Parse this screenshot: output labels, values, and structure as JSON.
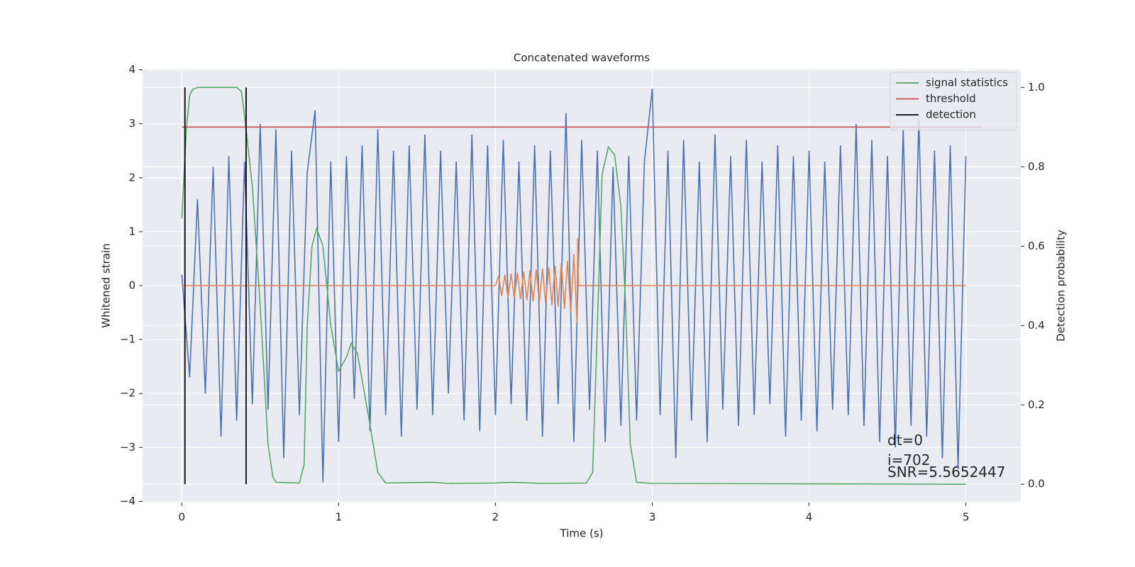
{
  "chart_data": {
    "type": "line",
    "title": "Concatenated waveforms",
    "xlabel": "Time (s)",
    "ylabel": "Whitened strain",
    "y2label": "Detection probability",
    "xlim": [
      -0.25,
      5.35
    ],
    "ylim": [
      -4.02,
      4.02
    ],
    "y2lim": [
      -0.046,
      1.047
    ],
    "xticks": [
      0,
      1,
      2,
      3,
      4,
      5
    ],
    "yticks": [
      {
        "value": -4,
        "label": "−4"
      },
      {
        "value": -3,
        "label": "−3"
      },
      {
        "value": -2,
        "label": "−2"
      },
      {
        "value": -1,
        "label": "−1"
      },
      0,
      1,
      2,
      3,
      4
    ],
    "y2ticks": [
      {
        "value": 0,
        "label": "0.0"
      },
      {
        "value": 0.2,
        "label": "0.2"
      },
      {
        "value": 0.4,
        "label": "0.4"
      },
      {
        "value": 0.6,
        "label": "0.6"
      },
      {
        "value": 0.8,
        "label": "0.8"
      },
      {
        "value": 1,
        "label": "1.0"
      }
    ],
    "grid": true,
    "legend": "upper right",
    "series": [
      {
        "color": "#4c72b0",
        "x": [
          0,
          0.05,
          0.1,
          0.15,
          0.2,
          0.25,
          0.3,
          0.35,
          0.4,
          0.45,
          0.5,
          0.55,
          0.6,
          0.65,
          0.7,
          0.75,
          0.8,
          0.85,
          0.9,
          0.95,
          1.0,
          1.05,
          1.1,
          1.15,
          1.2,
          1.25,
          1.3,
          1.35,
          1.4,
          1.45,
          1.5,
          1.55,
          1.6,
          1.65,
          1.7,
          1.75,
          1.8,
          1.85,
          1.9,
          1.95,
          2.0,
          2.05,
          2.1,
          2.15,
          2.2,
          2.25,
          2.3,
          2.35,
          2.4,
          2.45,
          2.5,
          2.55,
          2.6,
          2.65,
          2.7,
          2.75,
          2.8,
          2.85,
          2.9,
          2.95,
          3.0,
          3.05,
          3.1,
          3.15,
          3.2,
          3.25,
          3.3,
          3.35,
          3.4,
          3.45,
          3.5,
          3.55,
          3.6,
          3.65,
          3.7,
          3.75,
          3.8,
          3.85,
          3.9,
          3.95,
          4.0,
          4.05,
          4.1,
          4.15,
          4.2,
          4.25,
          4.3,
          4.35,
          4.4,
          4.45,
          4.5,
          4.55,
          4.6,
          4.65,
          4.7,
          4.75,
          4.8,
          4.85,
          4.9,
          4.95,
          5.0
        ],
        "values": [
          0.2,
          -1.7,
          1.6,
          -2.0,
          2.2,
          -2.8,
          2.4,
          -2.5,
          2.3,
          -2.2,
          3.0,
          -2.3,
          2.9,
          -3.2,
          2.5,
          -2.4,
          2.1,
          3.25,
          -3.65,
          2.3,
          -2.9,
          2.4,
          -2.1,
          2.6,
          -2.7,
          2.9,
          -2.4,
          2.5,
          -2.8,
          2.6,
          -2.3,
          2.8,
          -2.4,
          2.5,
          -2.0,
          2.3,
          -2.5,
          2.8,
          -2.7,
          2.6,
          -2.4,
          2.7,
          -2.2,
          2.3,
          -2.5,
          2.6,
          -2.8,
          2.5,
          -2.2,
          3.2,
          -2.9,
          2.7,
          -2.3,
          2.5,
          -2.9,
          2.2,
          -2.6,
          2.4,
          -2.5,
          2.3,
          3.65,
          -2.4,
          2.5,
          -3.2,
          2.7,
          -2.5,
          2.3,
          -2.9,
          2.8,
          -2.3,
          2.4,
          -2.6,
          2.7,
          -2.4,
          2.3,
          -2.2,
          2.6,
          -2.8,
          2.4,
          -2.5,
          2.5,
          -2.7,
          2.3,
          -2.3,
          2.6,
          -2.4,
          3.0,
          -2.6,
          2.7,
          -2.9,
          2.4,
          -3.0,
          2.9,
          -2.6,
          3.1,
          -2.8,
          2.5,
          -3.2,
          2.6,
          -3.4,
          2.4
        ]
      },
      {
        "color": "#dd8452",
        "x": [
          0,
          2.0,
          2.02,
          2.04,
          2.06,
          2.08,
          2.1,
          2.12,
          2.14,
          2.16,
          2.18,
          2.2,
          2.22,
          2.24,
          2.26,
          2.28,
          2.3,
          2.32,
          2.34,
          2.36,
          2.38,
          2.4,
          2.42,
          2.44,
          2.46,
          2.48,
          2.5,
          2.52,
          2.525,
          2.53,
          5.0
        ],
        "values": [
          0,
          0,
          0.18,
          -0.19,
          0.2,
          -0.21,
          0.22,
          -0.23,
          0.24,
          -0.25,
          0.26,
          -0.27,
          0.28,
          -0.29,
          0.3,
          -0.31,
          0.32,
          -0.33,
          0.34,
          -0.36,
          0.37,
          -0.39,
          0.41,
          -0.43,
          0.46,
          -0.5,
          0.58,
          -0.68,
          0.88,
          0,
          0
        ]
      },
      {
        "name": "signal statistics",
        "color": "#55a868",
        "axis": "y2",
        "x": [
          0,
          0.03,
          0.05,
          0.07,
          0.1,
          0.35,
          0.38,
          0.4,
          0.45,
          0.5,
          0.55,
          0.58,
          0.6,
          0.75,
          0.78,
          0.8,
          0.83,
          0.86,
          0.9,
          0.95,
          1.0,
          1.05,
          1.08,
          1.12,
          1.2,
          1.25,
          1.3,
          1.6,
          1.7,
          2.0,
          2.1,
          2.3,
          2.58,
          2.62,
          2.65,
          2.68,
          2.72,
          2.76,
          2.8,
          2.83,
          2.86,
          2.9,
          3.0,
          5.0
        ],
        "values": [
          0.67,
          0.9,
          0.98,
          0.995,
          1.0,
          1.0,
          0.99,
          0.93,
          0.75,
          0.45,
          0.1,
          0.02,
          0.005,
          0.003,
          0.05,
          0.4,
          0.6,
          0.645,
          0.6,
          0.4,
          0.285,
          0.32,
          0.355,
          0.33,
          0.15,
          0.03,
          0.003,
          0.005,
          0.002,
          0.003,
          0.005,
          0.002,
          0.003,
          0.03,
          0.4,
          0.78,
          0.85,
          0.83,
          0.7,
          0.45,
          0.1,
          0.005,
          0.002,
          0.0
        ]
      },
      {
        "name": "threshold",
        "color": "#c44e52",
        "axis": "y2",
        "x": [
          0,
          5.1
        ],
        "values": [
          0.9,
          0.9
        ]
      }
    ],
    "detection": {
      "name": "detection",
      "color": "#000000",
      "axis": "y2",
      "x": [
        0.02,
        0.41
      ],
      "ymin": 0,
      "ymax": 1
    },
    "annotations": [
      "dt=0",
      "i=702",
      "SNR=5.5652447"
    ]
  }
}
